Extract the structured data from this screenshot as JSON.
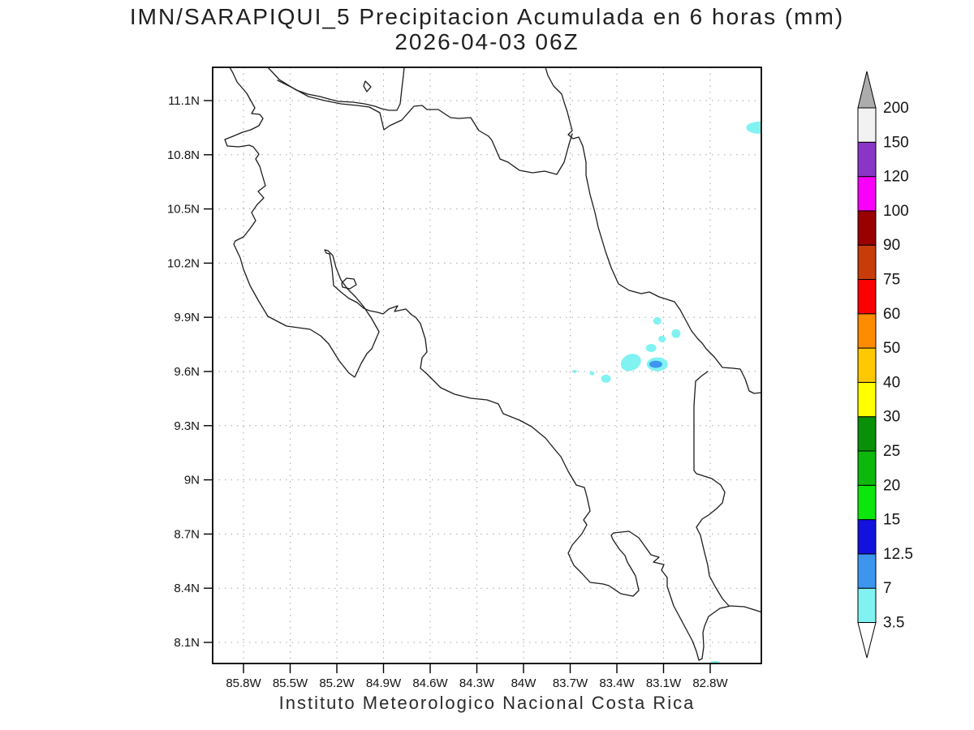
{
  "title": {
    "line1": "IMN/SARAPIQUI_5 Precipitacion Acumulada en 6 horas (mm)",
    "line2": "2026-04-03 06Z"
  },
  "footer": "Instituto Meteorologico Nacional Costa Rica",
  "axes": {
    "lat_labels": [
      "11.1N",
      "10.8N",
      "10.5N",
      "10.2N",
      "9.9N",
      "9.6N",
      "9.3N",
      "9N",
      "8.7N",
      "8.4N",
      "8.1N"
    ],
    "lon_labels": [
      "85.8W",
      "85.5W",
      "85.2W",
      "84.9W",
      "84.6W",
      "84.3W",
      "84W",
      "83.7W",
      "83.4W",
      "83.1W",
      "82.8W"
    ],
    "grid_style": "dotted",
    "grid_color": "#a6a6a6"
  },
  "colorbar": {
    "units": "mm",
    "levels": [
      "3.5",
      "7",
      "12.5",
      "15",
      "20",
      "25",
      "30",
      "40",
      "50",
      "60",
      "75",
      "90",
      "100",
      "120",
      "150",
      "200"
    ],
    "colors": [
      "#80F2F2",
      "#3C96F0",
      "#1212DE",
      "#0CE60C",
      "#0DB80D",
      "#089108",
      "#FFFF00",
      "#FFC800",
      "#FF8C00",
      "#FA0000",
      "#C83C0A",
      "#9B0000",
      "#FA00FA",
      "#8B35C8",
      "#F2F2F2"
    ],
    "over_color": "#ACACAC",
    "under_color": "#FFFFFF"
  },
  "precipitation": {
    "range_colors": {
      "3.5-7": "#80F2F2",
      "7-12.5": "#3C96F0"
    },
    "cells": [
      {
        "lat": 10.95,
        "lon_w": 82.48,
        "range_mm": "3.5-7",
        "rx": 17,
        "ry": 7.5,
        "rot": 0
      },
      {
        "lat": 9.88,
        "lon_w": 83.14,
        "range_mm": "3.5-7",
        "rx": 5,
        "ry": 4.5,
        "rot": 0
      },
      {
        "lat": 9.81,
        "lon_w": 83.02,
        "range_mm": "3.5-7",
        "rx": 5.5,
        "ry": 5.5,
        "rot": 0
      },
      {
        "lat": 9.78,
        "lon_w": 83.11,
        "range_mm": "3.5-7",
        "rx": 4.5,
        "ry": 4,
        "rot": 0
      },
      {
        "lat": 9.73,
        "lon_w": 83.18,
        "range_mm": "3.5-7",
        "rx": 6.5,
        "ry": 5,
        "rot": 0
      },
      {
        "lat": 9.65,
        "lon_w": 83.31,
        "range_mm": "3.5-7",
        "rx": 13,
        "ry": 10,
        "rot": -25
      },
      {
        "lat": 9.64,
        "lon_w": 83.14,
        "range_mm": "3.5-7",
        "rx": 13,
        "ry": 8.5,
        "rot": 0
      },
      {
        "lat": 9.64,
        "lon_w": 83.15,
        "range_mm": "7-12.5",
        "rx": 8,
        "ry": 4.5,
        "rot": 0
      },
      {
        "lat": 9.56,
        "lon_w": 83.47,
        "range_mm": "3.5-7",
        "rx": 6,
        "ry": 5,
        "rot": 0
      },
      {
        "lat": 9.59,
        "lon_w": 83.56,
        "range_mm": "3.5-7",
        "rx": 3,
        "ry": 2.5,
        "rot": 0
      },
      {
        "lat": 9.6,
        "lon_w": 83.67,
        "range_mm": "3.5-7",
        "rx": 2.5,
        "ry": 2,
        "rot": 0
      },
      {
        "lat": 7.98,
        "lon_w": 82.77,
        "range_mm": "3.5-7",
        "rx": 7,
        "ry": 4,
        "rot": 0
      }
    ]
  }
}
